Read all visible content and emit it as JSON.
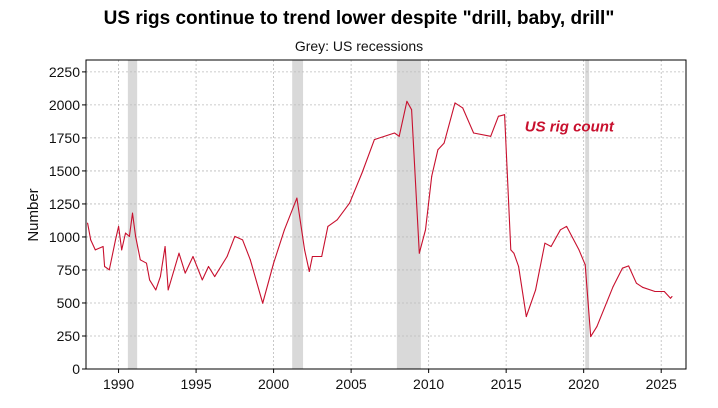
{
  "chart_data": {
    "type": "line",
    "title": "US rigs continue to trend lower despite \"drill, baby, drill\"",
    "subtitle": "Grey: US recessions",
    "xlabel": "",
    "ylabel": "Number",
    "xlim": [
      1987.9,
      2026.6
    ],
    "ylim": [
      0,
      2340
    ],
    "grid": true,
    "xticks": [
      1990,
      1995,
      2000,
      2005,
      2010,
      2015,
      2020,
      2025
    ],
    "xtick_labels": [
      "1990",
      "1995",
      "2000",
      "2005",
      "2010",
      "2015",
      "2020",
      "2025"
    ],
    "yticks": [
      0,
      250,
      500,
      750,
      1000,
      1250,
      1500,
      1750,
      2000,
      2250
    ],
    "ytick_labels": [
      "0",
      "250",
      "500",
      "750",
      "1000",
      "1250",
      "1500",
      "1750",
      "2000",
      "2250"
    ],
    "recessions": [
      [
        1990.6,
        1991.2
      ],
      [
        2001.2,
        2001.9
      ],
      [
        2007.95,
        2009.5
      ],
      [
        2020.1,
        2020.35
      ]
    ],
    "recession_color": "#d9d9d9",
    "series": [
      {
        "name": "US rig count",
        "color": "#c8102e",
        "x": [
          1988.0,
          1988.2,
          1988.5,
          1989.0,
          1989.1,
          1989.4,
          1989.8,
          1990.0,
          1990.2,
          1990.45,
          1990.7,
          1990.9,
          1991.1,
          1991.4,
          1991.8,
          1992.0,
          1992.4,
          1992.7,
          1993.0,
          1993.2,
          1993.9,
          1994.3,
          1994.8,
          1995.4,
          1995.8,
          1996.2,
          1997.0,
          1997.5,
          1998.0,
          1998.5,
          1999.3,
          2000.0,
          2000.7,
          2001.5,
          2002.0,
          2002.3,
          2002.5,
          2003.1,
          2003.5,
          2004.1,
          2004.9,
          2005.7,
          2006.5,
          2007.8,
          2008.1,
          2008.6,
          2008.9,
          2009.4,
          2009.8,
          2010.2,
          2010.6,
          2011.0,
          2011.7,
          2012.2,
          2012.9,
          2014.0,
          2014.5,
          2014.9,
          2015.3,
          2015.5,
          2015.8,
          2016.3,
          2016.9,
          2017.5,
          2017.9,
          2018.5,
          2018.9,
          2019.7,
          2020.1,
          2020.45,
          2020.85,
          2021.9,
          2022.5,
          2022.9,
          2023.4,
          2023.8,
          2024.6,
          2025.2,
          2025.6,
          2025.7
        ],
        "y": [
          1105,
          978,
          902,
          928,
          776,
          751,
          978,
          1080,
          902,
          1029,
          1004,
          1180,
          1004,
          827,
          801,
          675,
          599,
          700,
          928,
          599,
          877,
          726,
          852,
          675,
          776,
          700,
          852,
          1004,
          978,
          827,
          498,
          801,
          1054,
          1294,
          902,
          738,
          852,
          852,
          1080,
          1130,
          1256,
          1484,
          1737,
          1787,
          1762,
          2027,
          1964,
          877,
          1054,
          1459,
          1661,
          1711,
          2015,
          1977,
          1787,
          1762,
          1914,
          1926,
          902,
          877,
          776,
          397,
          599,
          953,
          928,
          1054,
          1080,
          902,
          789,
          245,
          321,
          624,
          763,
          781,
          650,
          619,
          587,
          587,
          536,
          549
        ]
      }
    ],
    "annotations": [
      {
        "text": "US rig count",
        "x": 2016.2,
        "y": 1800
      }
    ]
  }
}
